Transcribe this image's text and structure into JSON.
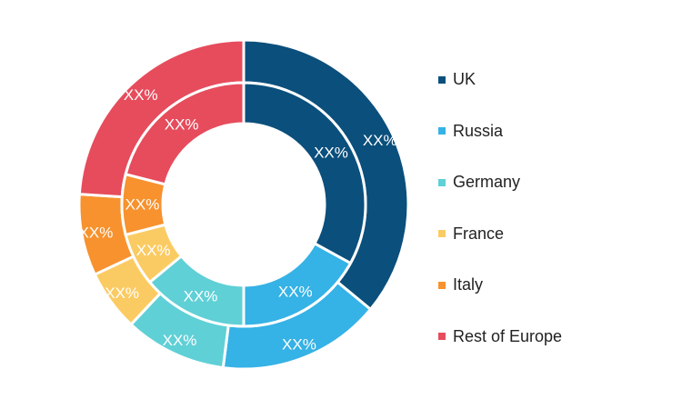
{
  "chart_data": {
    "type": "pie",
    "variant": "nested-donut",
    "categories": [
      "UK",
      "Russia",
      "Germany",
      "France",
      "Italy",
      "Rest of Europe"
    ],
    "colors": [
      "#0b4f7c",
      "#35b2e6",
      "#5fd0d6",
      "#fbcb63",
      "#f7922e",
      "#e64c5c"
    ],
    "series": [
      {
        "ring": "outer",
        "values": [
          36,
          16,
          10,
          6,
          8,
          24
        ],
        "labels": [
          "XX%",
          "XX%",
          "XX%",
          "XX%",
          "XX%",
          "XX%"
        ]
      },
      {
        "ring": "inner",
        "values": [
          33,
          17,
          14,
          7,
          8,
          21
        ],
        "labels": [
          "XX%",
          "XX%",
          "XX%",
          "XX%",
          "XX%",
          "XX%"
        ]
      }
    ],
    "legend_position": "right"
  },
  "legend": {
    "items": [
      {
        "label": "UK",
        "color": "#0b4f7c"
      },
      {
        "label": "Russia",
        "color": "#35b2e6"
      },
      {
        "label": "Germany",
        "color": "#5fd0d6"
      },
      {
        "label": "France",
        "color": "#fbcb63"
      },
      {
        "label": "Italy",
        "color": "#f7922e"
      },
      {
        "label": "Rest of Europe",
        "color": "#e64c5c"
      }
    ]
  }
}
